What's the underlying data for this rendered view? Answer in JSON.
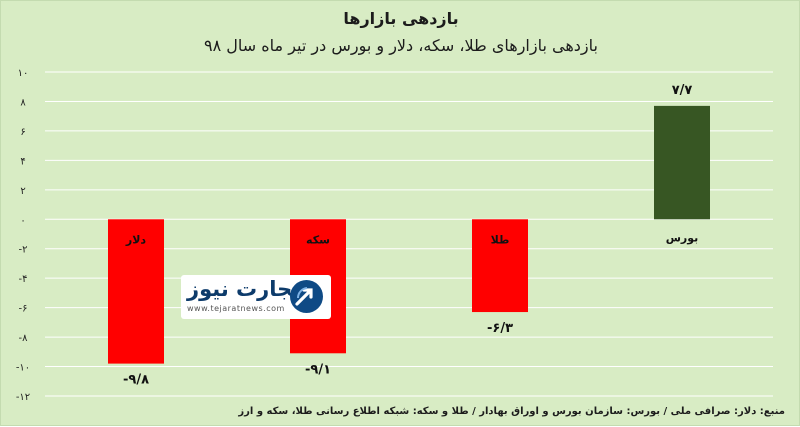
{
  "chart_data": {
    "type": "bar",
    "title": "بازدهی بازارها",
    "subtitle": "بازدهی بازارهای طلا، سکه، دلار و بورس در تیر ماه سال ۹۸",
    "categories": [
      "دلار",
      "سکه",
      "طلا",
      "بورس"
    ],
    "values": [
      -9.8,
      -9.1,
      -6.3,
      7.7
    ],
    "value_labels": [
      "-۹/۸",
      "-۹/۱",
      "-۶/۳",
      "۷/۷"
    ],
    "ylim": [
      -12,
      10
    ],
    "yticks": [
      10,
      8,
      6,
      4,
      2,
      0,
      -2,
      -4,
      -6,
      -8,
      -10,
      -12
    ],
    "ytick_labels": [
      "۱۰",
      "۸",
      "۶",
      "۴",
      "۲",
      "۰",
      "-۲",
      "-۴",
      "-۶",
      "-۸",
      "-۱۰",
      "-۱۲"
    ],
    "grid": true,
    "colors": {
      "negative": "#ff0000",
      "positive": "#375623",
      "grid": "#ffffff",
      "background": "#d8ecc4"
    }
  },
  "source": "منبع: دلار: صرافی ملی / بورس: سازمان بورس و اوراق بهادار / طلا و سکه: شبکه اطلاع رسانی طلا، سکه و ارز",
  "logo": {
    "name": "تجارت نیوز",
    "url": "www.tejaratnews.com",
    "icon": "tejarat-news-arrow-icon"
  }
}
